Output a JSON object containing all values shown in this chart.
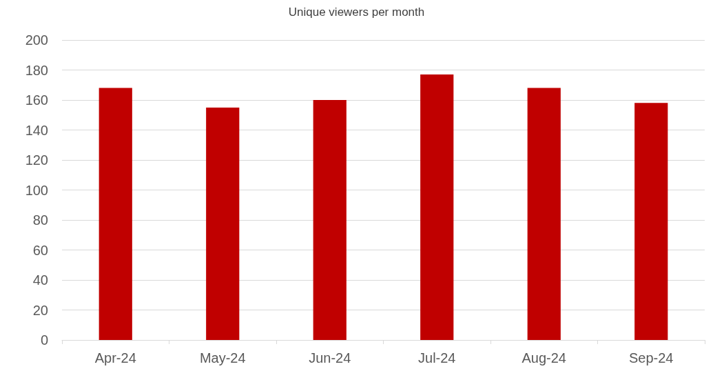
{
  "chart_data": {
    "type": "bar",
    "title": "Unique viewers per month",
    "categories": [
      "Apr-24",
      "May-24",
      "Jun-24",
      "Jul-24",
      "Aug-24",
      "Sep-24"
    ],
    "values": [
      168,
      155,
      160,
      177,
      168,
      158
    ],
    "color": "#c00000",
    "ylim": [
      0,
      200
    ],
    "yticks": [
      0,
      20,
      40,
      60,
      80,
      100,
      120,
      140,
      160,
      180,
      200
    ],
    "grid": "y"
  }
}
